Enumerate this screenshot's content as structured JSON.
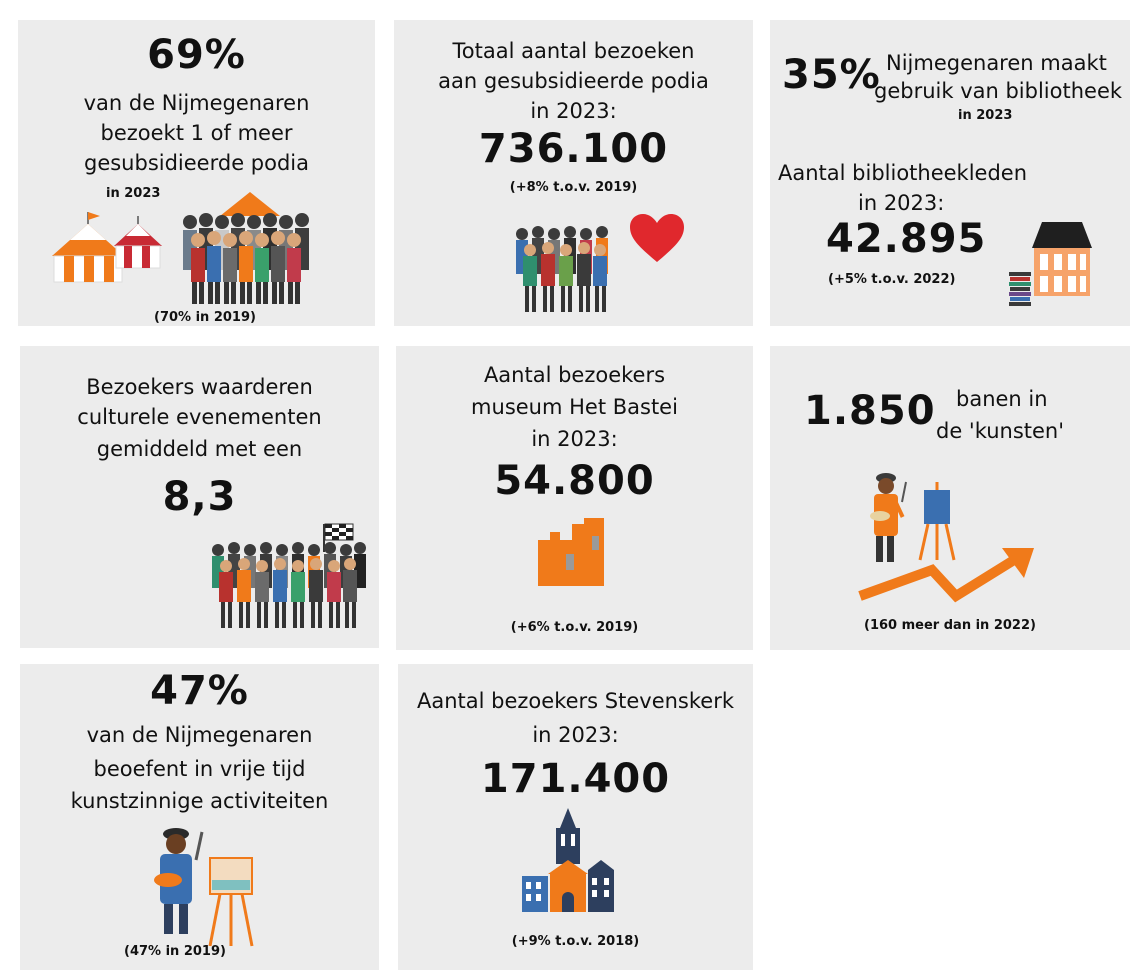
{
  "tile1": {
    "big": "69%",
    "line1": "van de Nijmegenaren",
    "line2": "bezoekt 1 of meer",
    "line3": "gesubsidieerde podia",
    "year": "in 2023",
    "note": "(70% in 2019)"
  },
  "tile2": {
    "line1": "Totaal aantal bezoeken",
    "line2": "aan gesubsidieerde podia",
    "line3": "in 2023:",
    "big": "736.100",
    "note": "(+8% t.o.v. 2019)"
  },
  "tile3": {
    "pct": "35%",
    "line1": "Nijmegenaren maakt",
    "line2": "gebruik van bibliotheek",
    "year": "in 2023",
    "line3": "Aantal bibliotheekleden",
    "line4": "in 2023:",
    "big": "42.895",
    "note": "(+5% t.o.v. 2022)"
  },
  "tile4": {
    "line1": "Bezoekers waarderen",
    "line2": "culturele evenementen",
    "line3": "gemiddeld met een",
    "big": "8,3"
  },
  "tile5": {
    "line1": "Aantal bezoekers",
    "line2": "museum Het Bastei",
    "line3": "in 2023:",
    "big": "54.800",
    "note": "(+6% t.o.v. 2019)"
  },
  "tile6": {
    "big": "1.850",
    "line1": "banen in",
    "line2": "de 'kunsten'",
    "note": "(160 meer dan in 2022)"
  },
  "tile7": {
    "big": "47%",
    "line1": "van de Nijmegenaren",
    "line2": "beoefent in vrije tijd",
    "line3": "kunstzinnige activiteiten",
    "note": "(47% in 2019)"
  },
  "tile8": {
    "line1": "Aantal bezoekers Stevenskerk",
    "line2": "in 2023:",
    "big": "171.400",
    "note": "(+9% t.o.v. 2018)"
  },
  "icons": [
    "tents-icon",
    "crowd-icon",
    "heart-icon",
    "library-building-icon",
    "books-icon",
    "checkered-flag-icon",
    "museum-icon",
    "painter-icon",
    "easel-icon",
    "rising-arrow-icon",
    "church-icon"
  ],
  "colors": {
    "tile": "#ececec",
    "orange": "#f07a1a",
    "red": "#e0282d",
    "navy": "#2d3f5e"
  }
}
